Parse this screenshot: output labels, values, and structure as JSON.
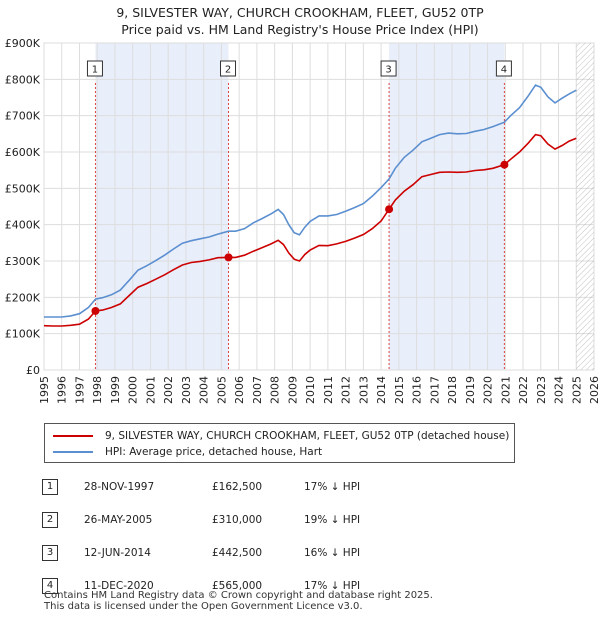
{
  "title": "9, SILVESTER WAY, CHURCH CROOKHAM, FLEET, GU52 0TP",
  "subtitle": "Price paid vs. HM Land Registry's House Price Index (HPI)",
  "chart_data": {
    "type": "line",
    "x_range": [
      1995,
      2026
    ],
    "ylim": [
      0,
      900000
    ],
    "y_ticks": [
      {
        "value": 0,
        "label": "£0"
      },
      {
        "value": 100000,
        "label": "£100K"
      },
      {
        "value": 200000,
        "label": "£200K"
      },
      {
        "value": 300000,
        "label": "£300K"
      },
      {
        "value": 400000,
        "label": "£400K"
      },
      {
        "value": 500000,
        "label": "£500K"
      },
      {
        "value": 600000,
        "label": "£600K"
      },
      {
        "value": 700000,
        "label": "£700K"
      },
      {
        "value": 800000,
        "label": "£800K"
      },
      {
        "value": 900000,
        "label": "£900K"
      }
    ],
    "x_ticks": [
      "1995",
      "1996",
      "1997",
      "1998",
      "1999",
      "2000",
      "2001",
      "2002",
      "2003",
      "2004",
      "2005",
      "2006",
      "2007",
      "2008",
      "2009",
      "2010",
      "2011",
      "2012",
      "2013",
      "2014",
      "2015",
      "2016",
      "2017",
      "2018",
      "2019",
      "2020",
      "2021",
      "2022",
      "2023",
      "2024",
      "2025",
      "2026"
    ],
    "grid": true,
    "forecast_shading_from": 2025.0,
    "series": [
      {
        "name": "9, SILVESTER WAY, CHURCH CROOKHAM, FLEET, GU52 0TP (detached house)",
        "color": "#cc0000",
        "points": [
          [
            1995.0,
            122000
          ],
          [
            1995.5,
            121000
          ],
          [
            1996.0,
            121000
          ],
          [
            1996.5,
            123000
          ],
          [
            1997.0,
            126000
          ],
          [
            1997.5,
            140000
          ],
          [
            1997.9,
            162500
          ],
          [
            1998.3,
            165000
          ],
          [
            1998.8,
            172000
          ],
          [
            1999.3,
            182000
          ],
          [
            1999.8,
            205000
          ],
          [
            2000.3,
            228000
          ],
          [
            2000.8,
            238000
          ],
          [
            2001.3,
            250000
          ],
          [
            2001.8,
            262000
          ],
          [
            2002.3,
            276000
          ],
          [
            2002.8,
            289000
          ],
          [
            2003.3,
            296000
          ],
          [
            2003.8,
            299000
          ],
          [
            2004.3,
            303000
          ],
          [
            2004.8,
            309000
          ],
          [
            2005.4,
            310000
          ],
          [
            2005.8,
            310000
          ],
          [
            2006.3,
            316000
          ],
          [
            2006.8,
            327000
          ],
          [
            2007.3,
            337000
          ],
          [
            2007.8,
            347000
          ],
          [
            2008.2,
            357000
          ],
          [
            2008.5,
            345000
          ],
          [
            2008.8,
            322000
          ],
          [
            2009.1,
            305000
          ],
          [
            2009.4,
            300000
          ],
          [
            2009.7,
            318000
          ],
          [
            2010.0,
            330000
          ],
          [
            2010.5,
            343000
          ],
          [
            2011.0,
            342000
          ],
          [
            2011.5,
            347000
          ],
          [
            2012.0,
            354000
          ],
          [
            2012.5,
            363000
          ],
          [
            2013.0,
            373000
          ],
          [
            2013.5,
            389000
          ],
          [
            2014.0,
            410000
          ],
          [
            2014.45,
            442500
          ],
          [
            2014.8,
            468000
          ],
          [
            2015.3,
            492000
          ],
          [
            2015.8,
            510000
          ],
          [
            2016.3,
            532000
          ],
          [
            2016.8,
            538000
          ],
          [
            2017.3,
            544000
          ],
          [
            2017.8,
            545000
          ],
          [
            2018.3,
            544000
          ],
          [
            2018.8,
            545000
          ],
          [
            2019.3,
            549000
          ],
          [
            2019.8,
            551000
          ],
          [
            2020.3,
            555000
          ],
          [
            2020.95,
            565000
          ],
          [
            2021.3,
            580000
          ],
          [
            2021.8,
            600000
          ],
          [
            2022.3,
            625000
          ],
          [
            2022.7,
            648000
          ],
          [
            2023.0,
            645000
          ],
          [
            2023.4,
            622000
          ],
          [
            2023.8,
            608000
          ],
          [
            2024.2,
            618000
          ],
          [
            2024.6,
            630000
          ],
          [
            2025.0,
            638000
          ]
        ]
      },
      {
        "name": "HPI: Average price, detached house, Hart",
        "color": "#5b8fd0",
        "points": [
          [
            1995.0,
            146000
          ],
          [
            1995.5,
            146000
          ],
          [
            1996.0,
            146000
          ],
          [
            1996.5,
            149000
          ],
          [
            1997.0,
            155000
          ],
          [
            1997.5,
            172000
          ],
          [
            1997.9,
            195000
          ],
          [
            1998.3,
            199000
          ],
          [
            1998.8,
            207000
          ],
          [
            1999.3,
            220000
          ],
          [
            1999.8,
            247000
          ],
          [
            2000.3,
            275000
          ],
          [
            2000.8,
            287000
          ],
          [
            2001.3,
            301000
          ],
          [
            2001.8,
            316000
          ],
          [
            2002.3,
            333000
          ],
          [
            2002.8,
            349000
          ],
          [
            2003.3,
            356000
          ],
          [
            2003.8,
            361000
          ],
          [
            2004.3,
            366000
          ],
          [
            2004.8,
            374000
          ],
          [
            2005.4,
            382000
          ],
          [
            2005.8,
            382000
          ],
          [
            2006.3,
            389000
          ],
          [
            2006.8,
            405000
          ],
          [
            2007.3,
            417000
          ],
          [
            2007.8,
            430000
          ],
          [
            2008.2,
            442000
          ],
          [
            2008.5,
            428000
          ],
          [
            2008.8,
            400000
          ],
          [
            2009.1,
            378000
          ],
          [
            2009.4,
            372000
          ],
          [
            2009.7,
            393000
          ],
          [
            2010.0,
            409000
          ],
          [
            2010.5,
            424000
          ],
          [
            2011.0,
            424000
          ],
          [
            2011.5,
            428000
          ],
          [
            2012.0,
            437000
          ],
          [
            2012.5,
            447000
          ],
          [
            2013.0,
            458000
          ],
          [
            2013.5,
            478000
          ],
          [
            2014.0,
            502000
          ],
          [
            2014.45,
            526000
          ],
          [
            2014.8,
            555000
          ],
          [
            2015.3,
            585000
          ],
          [
            2015.8,
            605000
          ],
          [
            2016.3,
            628000
          ],
          [
            2016.8,
            638000
          ],
          [
            2017.3,
            648000
          ],
          [
            2017.8,
            652000
          ],
          [
            2018.3,
            650000
          ],
          [
            2018.8,
            651000
          ],
          [
            2019.3,
            657000
          ],
          [
            2019.8,
            662000
          ],
          [
            2020.3,
            670000
          ],
          [
            2020.95,
            682000
          ],
          [
            2021.3,
            700000
          ],
          [
            2021.8,
            722000
          ],
          [
            2022.3,
            755000
          ],
          [
            2022.7,
            784000
          ],
          [
            2023.0,
            778000
          ],
          [
            2023.4,
            752000
          ],
          [
            2023.8,
            735000
          ],
          [
            2024.2,
            748000
          ],
          [
            2024.6,
            760000
          ],
          [
            2025.0,
            770000
          ]
        ]
      }
    ],
    "sales": [
      {
        "num": "1",
        "x": 1997.9,
        "price": 162500
      },
      {
        "num": "2",
        "x": 2005.4,
        "price": 310000
      },
      {
        "num": "3",
        "x": 2014.45,
        "price": 442500
      },
      {
        "num": "4",
        "x": 2020.95,
        "price": 565000
      }
    ]
  },
  "legend": {
    "property_label": "9, SILVESTER WAY, CHURCH CROOKHAM, FLEET, GU52 0TP (detached house)",
    "hpi_label": "HPI: Average price, detached house, Hart",
    "property_color": "#cc0000",
    "hpi_color": "#5b8fd0"
  },
  "sales_table": [
    {
      "num": "1",
      "date": "28-NOV-1997",
      "price": "£162,500",
      "hpi": "17% ↓ HPI"
    },
    {
      "num": "2",
      "date": "26-MAY-2005",
      "price": "£310,000",
      "hpi": "19% ↓ HPI"
    },
    {
      "num": "3",
      "date": "12-JUN-2014",
      "price": "£442,500",
      "hpi": "16% ↓ HPI"
    },
    {
      "num": "4",
      "date": "11-DEC-2020",
      "price": "£565,000",
      "hpi": "17% ↓ HPI"
    }
  ],
  "footer": {
    "line1": "Contains HM Land Registry data © Crown copyright and database right 2025.",
    "line2": "This data is licensed under the Open Government Licence v3.0."
  }
}
